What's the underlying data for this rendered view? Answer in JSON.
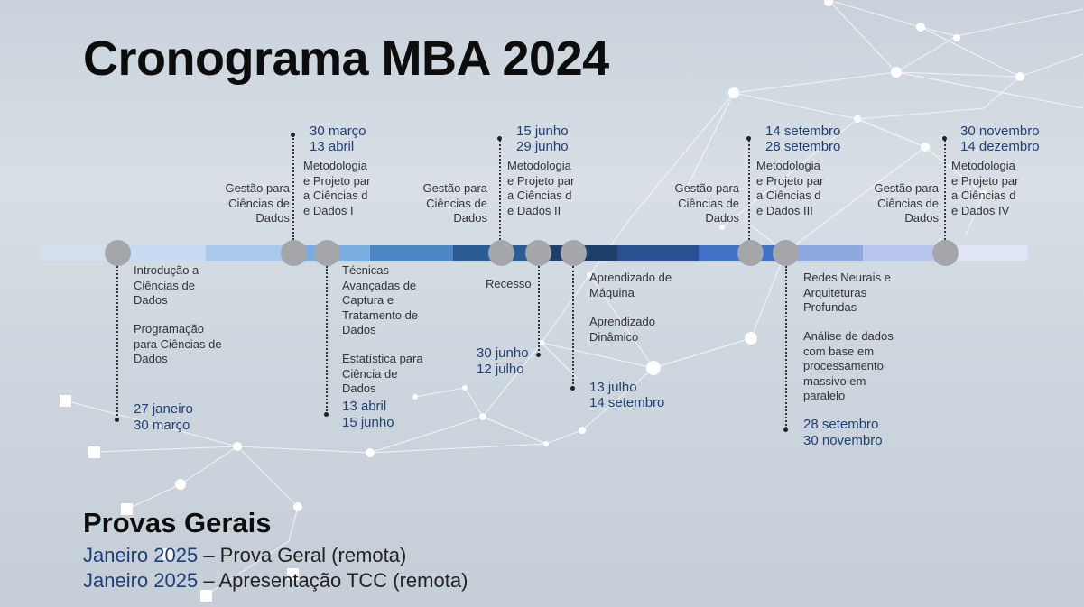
{
  "title": "Cronograma MBA 2024",
  "labels": {
    "intro": "Introdução a Ciências de Dados",
    "prog": "Programação para Ciências de Dados",
    "gestao1": "Gestão para Ciências de Dados",
    "metod1": "Metodologia e Projeto para Ciências de Dados I",
    "tecnicas": "Técnicas Avançadas de Captura e Tratamento de Dados",
    "estat": "Estatística para Ciência de Dados",
    "gestao2": "Gestão para Ciências de Dados",
    "metod2": "Metodologia e Projeto para Ciências de Dados II",
    "recesso": "Recesso",
    "aprend_maq": "Aprendizado  de Máquina",
    "aprend_din": "Aprendizado Dinâmico",
    "gestao3": "Gestão para Ciências de Dados",
    "metod3": "Metodologia e Projeto para Ciências de Dados III",
    "redes": "Redes Neurais e Arquiteturas Profundas",
    "analise": "Análise de dados com base em processamento massivo em paralelo",
    "gestao4": "Gestão para Ciências de Dados",
    "metod4": "Metodologia e Projeto para Ciências de Dados IV"
  },
  "dates": {
    "d1a": "27 janeiro",
    "d1b": "30 março",
    "d2a": "30 março",
    "d2b": "13 abril",
    "d3a": "13 abril",
    "d3b": "15 junho",
    "d4a": "15 junho",
    "d4b": "29 junho",
    "d5a": "30 junho",
    "d5b": "12 julho",
    "d6a": "13 julho",
    "d6b": "14 setembro",
    "d7a": "14 setembro",
    "d7b": "28 setembro",
    "d8a": "28 setembro",
    "d8b": "30 novembro",
    "d9a": "30 novembro",
    "d9b": "14 dezembro"
  },
  "provas": {
    "title": "Provas Gerais",
    "items": [
      {
        "date": "Janeiro 2025",
        "text": " – Prova Geral (remota)"
      },
      {
        "date": "Janeiro 2025",
        "text": " – Apresentação TCC (remota)"
      }
    ]
  },
  "colors": {
    "date_text": "#1f3f75",
    "milestone": "#a4a6a9",
    "bar_segments": [
      "#d4dfee",
      "#b7d3f0",
      "#9bc2e8",
      "#6ea4dc",
      "#4f86c5",
      "#2d5f9d",
      "#1f4577",
      "#213f6b",
      "#2a4f93",
      "#3e70c0",
      "#6c8fd6",
      "#9fb4e6",
      "#c2cfee",
      "#dfe5f3"
    ]
  }
}
